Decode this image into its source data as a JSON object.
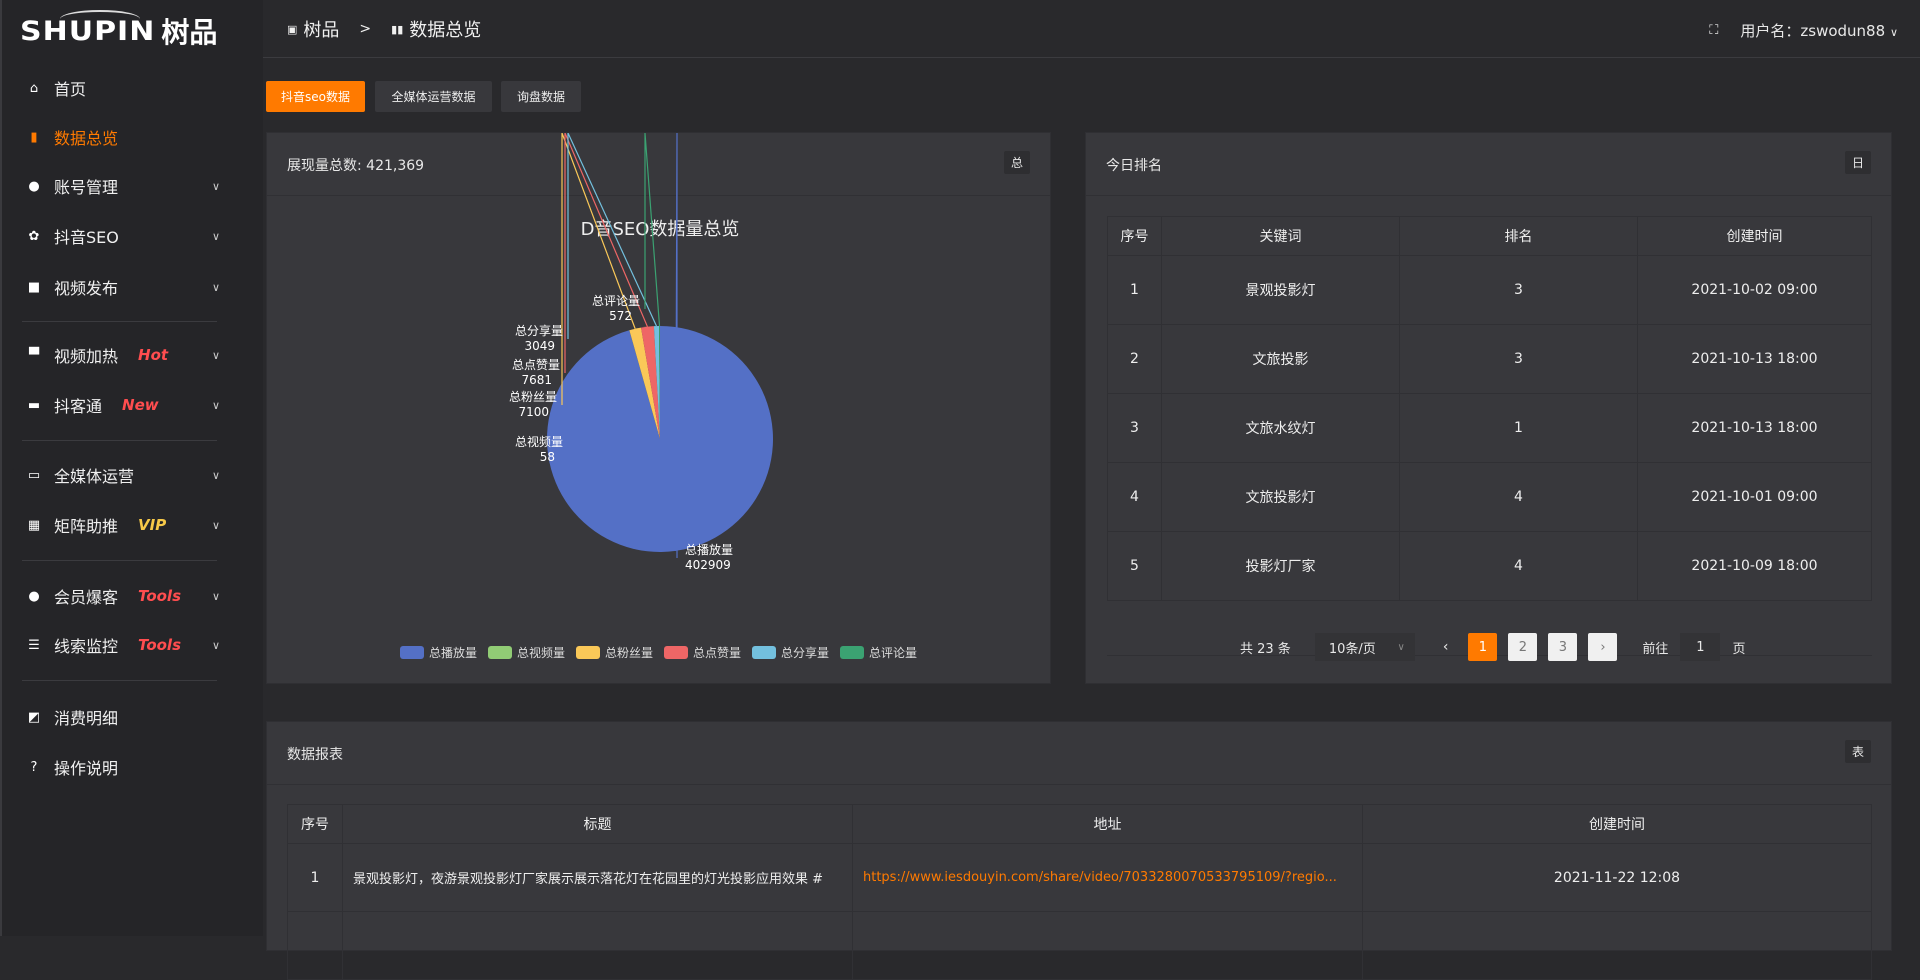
{
  "brand": {
    "logo_en": "SHUPIN",
    "logo_cn": "树品"
  },
  "sidebar": {
    "items": [
      {
        "label": "首页",
        "icon": "home-icon"
      },
      {
        "label": "数据总览",
        "icon": "bar-chart-icon",
        "active": true
      },
      {
        "label": "账号管理",
        "icon": "user-icon",
        "chevron": true
      },
      {
        "label": "抖音SEO",
        "icon": "gear-icon",
        "chevron": true
      },
      {
        "label": "视频发布",
        "icon": "camera-icon",
        "chevron": true
      },
      {
        "label": "视频加热",
        "icon": "flag-icon",
        "chevron": true,
        "badge": "Hot",
        "badge_color": "#ff4d4f"
      },
      {
        "label": "抖客通",
        "icon": "chat-icon",
        "chevron": true,
        "badge": "New",
        "badge_color": "#ff4d4f"
      },
      {
        "label": "全媒体运营",
        "icon": "monitor-icon",
        "chevron": true
      },
      {
        "label": "矩阵助推",
        "icon": "grid-icon",
        "chevron": true,
        "badge": "VIP",
        "badge_color": "#f7c948"
      },
      {
        "label": "会员爆客",
        "icon": "user-icon",
        "chevron": true,
        "badge": "Tools",
        "badge_color": "#ff4d4f"
      },
      {
        "label": "线索监控",
        "icon": "sliders-icon",
        "chevron": true,
        "badge": "Tools",
        "badge_color": "#ff4d4f"
      },
      {
        "label": "消费明细",
        "icon": "wallet-icon"
      },
      {
        "label": "操作说明",
        "icon": "help-icon"
      }
    ]
  },
  "header": {
    "breadcrumb": [
      "树品",
      "数据总览"
    ],
    "user_label": "用户名：zswodun88"
  },
  "tabs": [
    "抖音seo数据",
    "全媒体运营数据",
    "询盘数据"
  ],
  "pie_card": {
    "title": "展现量总数: 421,369",
    "tag": "总"
  },
  "chart_data": {
    "type": "pie",
    "title": "D音SEO数据量总览",
    "legend_position": "bottom",
    "slices": [
      {
        "name": "总播放量",
        "value": 402909,
        "color": "#5470c6"
      },
      {
        "name": "总视频量",
        "value": 58,
        "color": "#91cc75"
      },
      {
        "name": "总粉丝量",
        "value": 7100,
        "color": "#fac858"
      },
      {
        "name": "总点赞量",
        "value": 7681,
        "color": "#ee6666"
      },
      {
        "name": "总分享量",
        "value": 3049,
        "color": "#73c0de"
      },
      {
        "name": "总评论量",
        "value": 572,
        "color": "#3ba272"
      }
    ]
  },
  "ranking": {
    "title": "今日排名",
    "tag": "日",
    "columns": [
      "序号",
      "关键词",
      "排名",
      "创建时间"
    ],
    "rows": [
      [
        "1",
        "景观投影灯",
        "3",
        "2021-10-02 09:00"
      ],
      [
        "2",
        "文旅投影",
        "3",
        "2021-10-13 18:00"
      ],
      [
        "3",
        "文旅水纹灯",
        "1",
        "2021-10-13 18:00"
      ],
      [
        "4",
        "文旅投影灯",
        "4",
        "2021-10-01 09:00"
      ],
      [
        "5",
        "投影灯厂家",
        "4",
        "2021-10-09 18:00"
      ]
    ],
    "pagination": {
      "total": "共 23 条",
      "page_size": "10条/页",
      "pages": [
        "1",
        "2",
        "3"
      ],
      "current": "1",
      "goto_label": "前往",
      "goto_value": "1",
      "page_suffix": "页"
    }
  },
  "report": {
    "title": "数据报表",
    "tag": "表",
    "columns": [
      "序号",
      "标题",
      "地址",
      "创建时间"
    ],
    "rows": [
      [
        "1",
        "景观投影灯，夜游景观投影灯厂家展示展示落花灯在花园里的灯光投影应用效果 #",
        "https://www.iesdouyin.com/share/video/7033280070533795109/?regio...",
        "2021-11-22 12:08"
      ]
    ]
  },
  "colors": {
    "accent": "#ff7a00"
  }
}
